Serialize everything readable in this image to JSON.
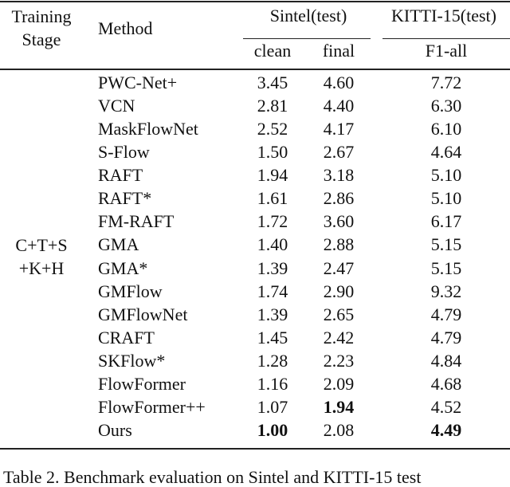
{
  "header": {
    "stage": "Training Stage",
    "method": "Method",
    "groups": [
      "Sintel(test)",
      "KITTI-15(test)"
    ],
    "subheaders": [
      "clean",
      "final",
      "F1-all"
    ]
  },
  "table": {
    "stage_lines": [
      "C+T+S",
      "+K+H"
    ],
    "rows": [
      [
        "PWC-Net+",
        "3.45",
        "4.60",
        "7.72"
      ],
      [
        "VCN",
        "2.81",
        "4.40",
        "6.30"
      ],
      [
        "MaskFlowNet",
        "2.52",
        "4.17",
        "6.10"
      ],
      [
        "S-Flow",
        "1.50",
        "2.67",
        "4.64"
      ],
      [
        "RAFT",
        "1.94",
        "3.18",
        "5.10"
      ],
      [
        "RAFT*",
        "1.61",
        "2.86",
        "5.10"
      ],
      [
        "FM-RAFT",
        "1.72",
        "3.60",
        "6.17"
      ],
      [
        "GMA",
        "1.40",
        "2.88",
        "5.15"
      ],
      [
        "GMA*",
        "1.39",
        "2.47",
        "5.15"
      ],
      [
        "GMFlow",
        "1.74",
        "2.90",
        "9.32"
      ],
      [
        "GMFlowNet",
        "1.39",
        "2.65",
        "4.79"
      ],
      [
        "CRAFT",
        "1.45",
        "2.42",
        "4.79"
      ],
      [
        "SKFlow*",
        "1.28",
        "2.23",
        "4.84"
      ],
      [
        "FlowFormer",
        "1.16",
        "2.09",
        "4.68"
      ],
      [
        "FlowFormer++",
        "1.07",
        "1.94",
        "4.52"
      ],
      [
        "Ours",
        "1.00",
        "2.08",
        "4.49"
      ]
    ],
    "bold_cells": [
      {
        "row": 14,
        "col": 2
      },
      {
        "row": 15,
        "col": 1
      },
      {
        "row": 15,
        "col": 3
      }
    ]
  },
  "caption": "Table 2. Benchmark evaluation on Sintel and KITTI-15 test"
}
